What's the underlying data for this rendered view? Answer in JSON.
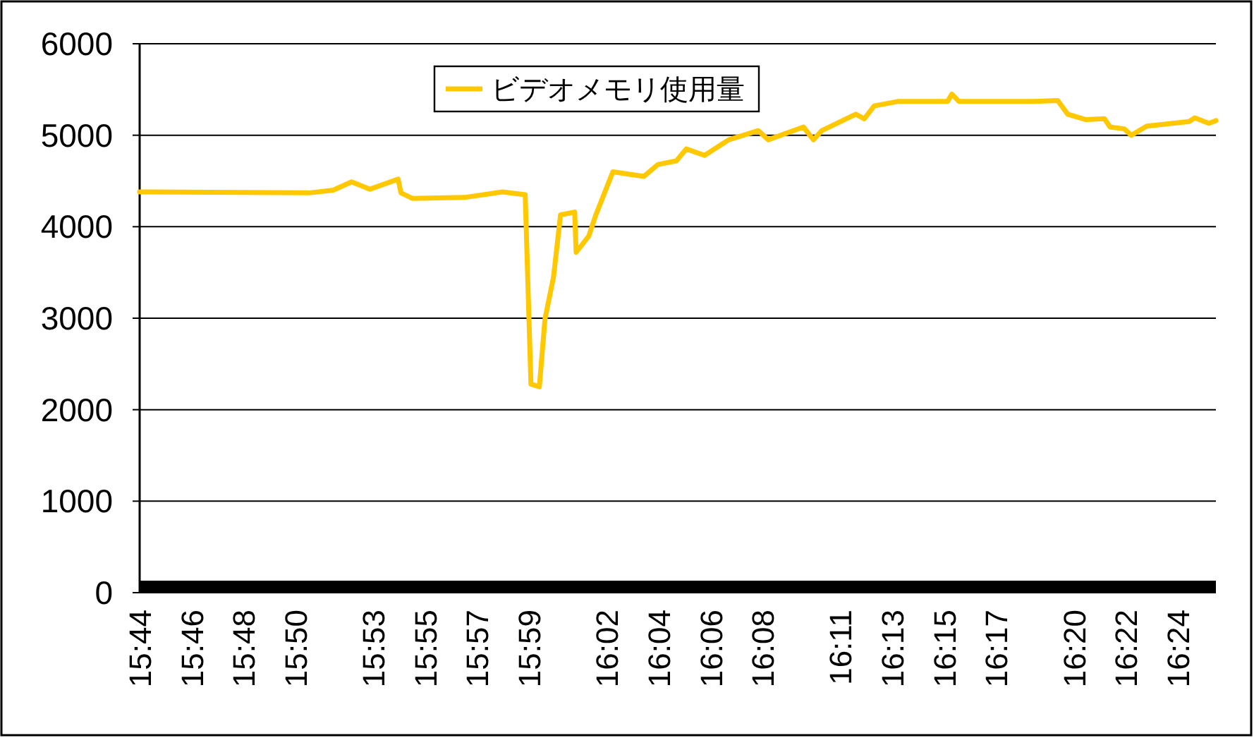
{
  "chart_data": {
    "type": "line",
    "legend": "top",
    "grid": "y",
    "marker": "none",
    "line_style": "solid",
    "ylim": [
      0,
      6000
    ],
    "yticks": [
      0,
      1000,
      2000,
      3000,
      4000,
      5000,
      6000
    ],
    "xlim": [
      15.7333,
      16.4245
    ],
    "xticks": [
      {
        "value": 15.7333,
        "label": "15:44"
      },
      {
        "value": 15.7667,
        "label": "15:46"
      },
      {
        "value": 15.8,
        "label": "15:48"
      },
      {
        "value": 15.8333,
        "label": "15:50"
      },
      {
        "value": 15.8833,
        "label": "15:53"
      },
      {
        "value": 15.9167,
        "label": "15:55"
      },
      {
        "value": 15.95,
        "label": "15:57"
      },
      {
        "value": 15.9833,
        "label": "15:59"
      },
      {
        "value": 16.0333,
        "label": "16:02"
      },
      {
        "value": 16.0667,
        "label": "16:04"
      },
      {
        "value": 16.1,
        "label": "16:06"
      },
      {
        "value": 16.1333,
        "label": "16:08"
      },
      {
        "value": 16.1833,
        "label": "16:11"
      },
      {
        "value": 16.2167,
        "label": "16:13"
      },
      {
        "value": 16.25,
        "label": "16:15"
      },
      {
        "value": 16.2833,
        "label": "16:17"
      },
      {
        "value": 16.3333,
        "label": "16:20"
      },
      {
        "value": 16.3667,
        "label": "16:22"
      },
      {
        "value": 16.4,
        "label": "16:24"
      }
    ],
    "series": [
      {
        "name": "ビデオメモリ使用量",
        "color": "#ffc800",
        "x": [
          15.7333,
          15.8422,
          15.8576,
          15.8694,
          15.8812,
          15.8993,
          15.9011,
          15.9084,
          15.9419,
          15.9664,
          15.9809,
          15.9846,
          15.99,
          15.9936,
          15.9991,
          16.0036,
          16.0127,
          16.0136,
          16.0218,
          16.0263,
          16.0372,
          16.0571,
          16.0662,
          16.078,
          16.0844,
          16.0961,
          16.1116,
          16.1306,
          16.137,
          16.1596,
          16.166,
          16.1714,
          16.1932,
          16.1987,
          16.205,
          16.2204,
          16.2522,
          16.2549,
          16.2594,
          16.3075,
          16.3229,
          16.3293,
          16.3411,
          16.3529,
          16.3565,
          16.3656,
          16.3701,
          16.3801,
          16.4073,
          16.4109,
          16.42,
          16.4245
        ],
        "values": [
          4380,
          4370,
          4400,
          4490,
          4410,
          4520,
          4370,
          4310,
          4320,
          4380,
          4350,
          2280,
          2250,
          2990,
          3450,
          4130,
          4160,
          3720,
          3900,
          4130,
          4600,
          4550,
          4680,
          4720,
          4850,
          4780,
          4950,
          5050,
          4950,
          5090,
          4950,
          5050,
          5230,
          5180,
          5320,
          5370,
          5370,
          5450,
          5370,
          5370,
          5380,
          5230,
          5170,
          5180,
          5090,
          5070,
          5000,
          5100,
          5150,
          5190,
          5130,
          5160
        ]
      }
    ]
  }
}
